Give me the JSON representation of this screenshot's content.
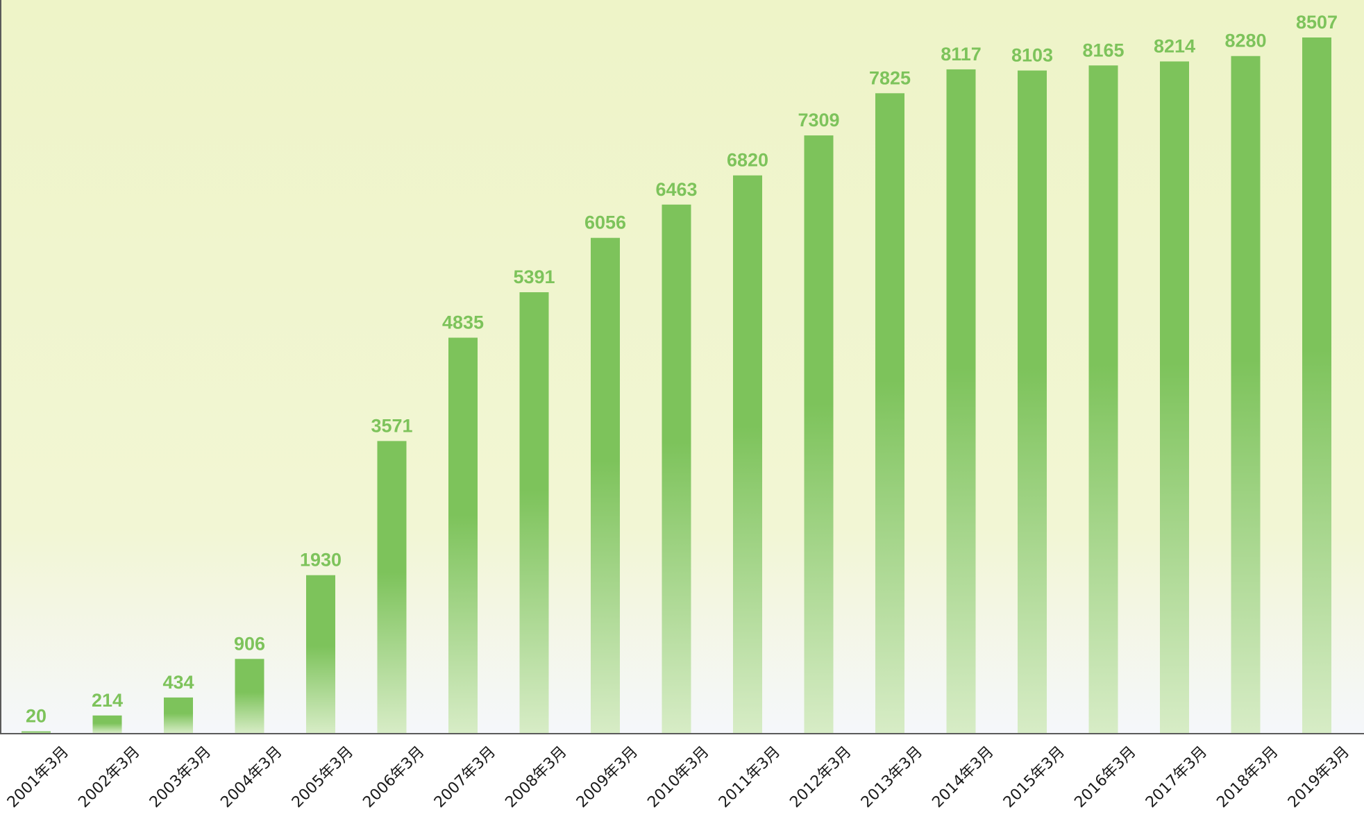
{
  "chart_data": {
    "type": "bar",
    "title": "",
    "xlabel": "",
    "ylabel": "",
    "categories": [
      "2001年3月",
      "2002年3月",
      "2003年3月",
      "2004年3月",
      "2005年3月",
      "2006年3月",
      "2007年3月",
      "2008年3月",
      "2009年3月",
      "2010年3月",
      "2011年3月",
      "2012年3月",
      "2013年3月",
      "2014年3月",
      "2015年3月",
      "2016年3月",
      "2017年3月",
      "2018年3月",
      "2019年3月"
    ],
    "values": [
      20,
      214,
      434,
      906,
      1930,
      3571,
      4835,
      5391,
      6056,
      6463,
      6820,
      7309,
      7825,
      8117,
      8103,
      8165,
      8214,
      8280,
      8507
    ],
    "data_labels": [
      "20",
      "214",
      "434",
      "906",
      "1930",
      "3571",
      "4835",
      "5391",
      "6056",
      "6463",
      "6820",
      "7309",
      "7825",
      "8117",
      "8103",
      "8165",
      "8214",
      "8280",
      "8507"
    ],
    "ylim": [
      0,
      8507
    ],
    "grid": false,
    "legend": "none",
    "colors": {
      "bar_top": "#7dc35b",
      "bar_bottom": "#d7ecc6",
      "label": "#7dc35b",
      "plot_bg_top": "#eef4c8",
      "plot_bg_mid": "#f2f6d4",
      "plot_bg_bottom": "#f5f7fb",
      "axis": "#5a5a5a",
      "tick_text": "#1a1a1a"
    }
  }
}
